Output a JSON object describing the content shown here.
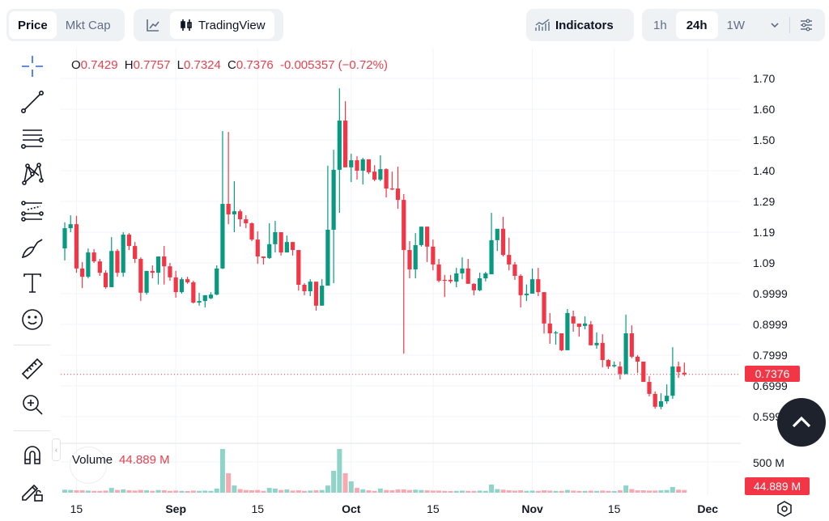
{
  "header": {
    "metric_tabs": [
      {
        "label": "Price",
        "active": true
      },
      {
        "label": "Mkt Cap",
        "active": false
      }
    ],
    "chart_type": {
      "line_icon": "line-chart-icon",
      "tradingview_label": "TradingView",
      "active": "TradingView"
    },
    "indicators_label": "Indicators",
    "timeframes": [
      {
        "label": "1h",
        "active": false
      },
      {
        "label": "24h",
        "active": true
      },
      {
        "label": "1W",
        "active": false
      }
    ],
    "more_icon": "chevron-down-icon",
    "settings_icon": "sliders-icon"
  },
  "legend": {
    "o_label": "O",
    "o": "0.7429",
    "h_label": "H",
    "h": "0.7757",
    "l_label": "L",
    "l": "0.7324",
    "c_label": "C",
    "c": "0.7376",
    "change": "-0.005357 (−0.72%)"
  },
  "volume_legend": {
    "label": "Volume",
    "value": "44.889 M"
  },
  "toolbar": [
    "crosshair-icon",
    "trend-line-icon",
    "fib-retracement-icon",
    "pattern-icon",
    "prediction-icon",
    "brush-icon",
    "text-icon",
    "emoji-icon",
    "ruler-icon",
    "zoom-in-icon",
    "magnet-icon",
    "lock-drawings-icon"
  ],
  "colors": {
    "up": "#089981",
    "down": "#f23645",
    "up_volume": "#8fd4c9",
    "down_volume": "#f7a8b0",
    "accent": "#2962ff"
  },
  "chart_data": {
    "type": "candlestick",
    "price_ticks": [
      "1.70",
      "1.60",
      "1.50",
      "1.40",
      "1.29",
      "1.19",
      "1.09",
      "0.9999",
      "0.8999",
      "0.7999",
      "0.6999",
      "0.5999"
    ],
    "ylim": [
      0.5999,
      1.7
    ],
    "volume_tick": "500 M",
    "volume_unit": "M",
    "x_ticks": [
      {
        "label": "15",
        "date": "08-15"
      },
      {
        "label": "Sep",
        "date": "09-01"
      },
      {
        "label": "15",
        "date": "09-15"
      },
      {
        "label": "Oct",
        "date": "10-01"
      },
      {
        "label": "15",
        "date": "10-15"
      },
      {
        "label": "Nov",
        "date": "11-01"
      },
      {
        "label": "15",
        "date": "11-15"
      },
      {
        "label": "Dec",
        "date": "12-01"
      }
    ],
    "last_price": "0.7376",
    "last_volume": "44.889 M",
    "grid": true,
    "candles_fields": [
      "date",
      "open",
      "high",
      "low",
      "close",
      "volume_M"
    ],
    "candles": [
      [
        "08-13",
        1.147,
        1.232,
        1.108,
        1.213,
        50
      ],
      [
        "08-14",
        1.213,
        1.255,
        1.2,
        1.226,
        45
      ],
      [
        "08-15",
        1.226,
        1.253,
        1.068,
        1.082,
        40
      ],
      [
        "08-16",
        1.082,
        1.103,
        1.018,
        1.055,
        40
      ],
      [
        "08-17",
        1.055,
        1.147,
        1.05,
        1.134,
        35
      ],
      [
        "08-18",
        1.134,
        1.145,
        1.1,
        1.105,
        30
      ],
      [
        "08-19",
        1.105,
        1.113,
        1.058,
        1.068,
        30
      ],
      [
        "08-20",
        1.068,
        1.076,
        1.016,
        1.021,
        35
      ],
      [
        "08-21",
        1.021,
        1.184,
        1.021,
        1.139,
        80
      ],
      [
        "08-22",
        1.139,
        1.145,
        1.055,
        1.068,
        45
      ],
      [
        "08-23",
        1.068,
        1.2,
        1.055,
        1.192,
        55
      ],
      [
        "08-24",
        1.192,
        1.197,
        1.142,
        1.155,
        40
      ],
      [
        "08-25",
        1.155,
        1.168,
        1.1,
        1.113,
        35
      ],
      [
        "08-26",
        1.113,
        1.118,
        0.976,
        1.003,
        45
      ],
      [
        "08-27",
        1.003,
        1.074,
        0.997,
        1.074,
        40
      ],
      [
        "08-28",
        1.074,
        1.092,
        1.05,
        1.068,
        30
      ],
      [
        "08-29",
        1.068,
        1.121,
        1.03,
        1.121,
        45
      ],
      [
        "08-30",
        1.121,
        1.155,
        1.03,
        1.089,
        40
      ],
      [
        "08-31",
        1.089,
        1.1,
        1.042,
        1.053,
        30
      ],
      [
        "09-01",
        1.053,
        1.074,
        0.987,
        1.005,
        35
      ],
      [
        "09-02",
        1.005,
        1.053,
        1.0,
        1.047,
        30
      ],
      [
        "09-03",
        1.047,
        1.055,
        1.032,
        1.037,
        25
      ],
      [
        "09-04",
        1.037,
        1.042,
        0.968,
        0.971,
        35
      ],
      [
        "09-05",
        0.971,
        1.003,
        0.961,
        0.976,
        30
      ],
      [
        "09-06",
        0.976,
        0.995,
        0.955,
        0.995,
        35
      ],
      [
        "09-07",
        0.985,
        1.005,
        0.982,
        0.997,
        30
      ],
      [
        "09-08",
        0.997,
        1.092,
        0.995,
        1.082,
        70
      ],
      [
        "09-09",
        1.082,
        1.529,
        1.08,
        1.292,
        730
      ],
      [
        "09-10",
        1.292,
        1.526,
        1.226,
        1.258,
        325
      ],
      [
        "09-11",
        1.258,
        1.366,
        1.2,
        1.268,
        120
      ],
      [
        "09-12",
        1.268,
        1.274,
        1.218,
        1.242,
        60
      ],
      [
        "09-13",
        1.242,
        1.255,
        1.213,
        1.229,
        45
      ],
      [
        "09-14",
        1.229,
        1.232,
        1.171,
        1.176,
        40
      ],
      [
        "09-15",
        1.176,
        1.203,
        1.097,
        1.121,
        45
      ],
      [
        "09-16",
        1.121,
        1.121,
        1.095,
        1.116,
        30
      ],
      [
        "09-17",
        1.116,
        1.229,
        1.113,
        1.161,
        80
      ],
      [
        "09-18",
        1.161,
        1.237,
        1.134,
        1.2,
        70
      ],
      [
        "09-19",
        1.2,
        1.2,
        1.124,
        1.134,
        45
      ],
      [
        "09-20",
        1.134,
        1.189,
        1.134,
        1.168,
        55
      ],
      [
        "09-21",
        1.168,
        1.168,
        1.124,
        1.142,
        35
      ],
      [
        "09-22",
        1.142,
        1.142,
        1.01,
        1.029,
        40
      ],
      [
        "09-23",
        1.029,
        1.034,
        0.995,
        1.008,
        30
      ],
      [
        "09-24",
        1.008,
        1.047,
        0.992,
        1.039,
        35
      ],
      [
        "09-25",
        1.039,
        1.039,
        0.945,
        0.961,
        40
      ],
      [
        "09-26",
        0.961,
        1.047,
        0.961,
        1.026,
        45
      ],
      [
        "09-27",
        1.026,
        1.416,
        1.026,
        1.208,
        120
      ],
      [
        "09-28",
        1.208,
        1.468,
        1.034,
        1.403,
        365
      ],
      [
        "09-29",
        1.403,
        1.668,
        1.263,
        1.563,
        730
      ],
      [
        "09-30",
        1.563,
        1.626,
        1.411,
        1.411,
        325
      ],
      [
        "10-01",
        1.411,
        1.455,
        1.363,
        1.434,
        190
      ],
      [
        "10-02",
        1.434,
        1.447,
        1.371,
        1.4,
        80
      ],
      [
        "10-03",
        1.4,
        1.442,
        1.355,
        1.437,
        55
      ],
      [
        "10-04",
        1.437,
        1.437,
        1.389,
        1.395,
        40
      ],
      [
        "10-05",
        1.397,
        1.418,
        1.366,
        1.371,
        30
      ],
      [
        "10-06",
        1.371,
        1.45,
        1.366,
        1.405,
        70
      ],
      [
        "10-07",
        1.405,
        1.408,
        1.313,
        1.342,
        45
      ],
      [
        "10-08",
        1.342,
        1.397,
        1.337,
        1.339,
        40
      ],
      [
        "10-09",
        1.342,
        1.413,
        1.276,
        1.305,
        55
      ],
      [
        "10-10",
        1.305,
        1.324,
        0.805,
        1.142,
        55
      ],
      [
        "10-11",
        1.142,
        1.171,
        1.05,
        1.079,
        45
      ],
      [
        "10-12",
        1.079,
        1.197,
        1.05,
        1.158,
        50
      ],
      [
        "10-13",
        1.158,
        1.218,
        1.153,
        1.218,
        45
      ],
      [
        "10-14",
        1.218,
        1.218,
        1.103,
        1.153,
        40
      ],
      [
        "10-15",
        1.153,
        1.176,
        1.076,
        1.095,
        35
      ],
      [
        "10-16",
        1.095,
        1.113,
        1.037,
        1.042,
        35
      ],
      [
        "10-17",
        1.045,
        1.061,
        0.989,
        1.042,
        30
      ],
      [
        "10-18",
        1.045,
        1.061,
        1.034,
        1.04,
        25
      ],
      [
        "10-19",
        1.039,
        1.084,
        1.021,
        1.066,
        30
      ],
      [
        "10-20",
        1.066,
        1.118,
        1.047,
        1.082,
        35
      ],
      [
        "10-21",
        1.082,
        1.113,
        1.032,
        1.032,
        30
      ],
      [
        "10-22",
        1.032,
        1.034,
        0.995,
        1.011,
        30
      ],
      [
        "10-23",
        1.011,
        1.068,
        1.008,
        1.05,
        35
      ],
      [
        "10-24",
        1.05,
        1.071,
        1.04,
        1.066,
        30
      ],
      [
        "10-25",
        1.063,
        1.263,
        1.063,
        1.174,
        135
      ],
      [
        "10-26",
        1.174,
        1.211,
        1.139,
        1.211,
        60
      ],
      [
        "10-27",
        1.211,
        1.25,
        1.121,
        1.126,
        50
      ],
      [
        "10-28",
        1.126,
        1.182,
        1.076,
        1.095,
        40
      ],
      [
        "10-29",
        1.095,
        1.103,
        1.045,
        1.058,
        35
      ],
      [
        "10-30",
        1.058,
        1.063,
        0.955,
        0.995,
        40
      ],
      [
        "10-31",
        0.995,
        1.03,
        0.976,
        1.0,
        30
      ],
      [
        "11-01",
        1.0,
        1.082,
        1.0,
        1.047,
        35
      ],
      [
        "11-02",
        1.047,
        1.084,
        0.992,
        1.005,
        30
      ],
      [
        "11-03",
        1.005,
        1.005,
        0.87,
        0.903,
        40
      ],
      [
        "11-04",
        0.903,
        0.937,
        0.837,
        0.871,
        35
      ],
      [
        "11-05",
        0.871,
        0.879,
        0.834,
        0.874,
        30
      ],
      [
        "11-06",
        0.871,
        0.871,
        0.813,
        0.816,
        30
      ],
      [
        "11-07",
        0.816,
        0.95,
        0.816,
        0.937,
        45
      ],
      [
        "11-08",
        0.926,
        0.945,
        0.876,
        0.903,
        35
      ],
      [
        "11-09",
        0.903,
        0.903,
        0.86,
        0.892,
        30
      ],
      [
        "11-10",
        0.895,
        0.926,
        0.884,
        0.903,
        30
      ],
      [
        "11-11",
        0.9,
        0.911,
        0.832,
        0.832,
        35
      ],
      [
        "11-12",
        0.832,
        0.874,
        0.821,
        0.84,
        30
      ],
      [
        "11-13",
        0.84,
        0.868,
        0.76,
        0.784,
        35
      ],
      [
        "11-14",
        0.784,
        0.787,
        0.755,
        0.763,
        30
      ],
      [
        "11-15",
        0.764,
        0.779,
        0.76,
        0.768,
        25
      ],
      [
        "11-16",
        0.763,
        0.779,
        0.721,
        0.739,
        40
      ],
      [
        "11-17",
        0.739,
        0.932,
        0.737,
        0.871,
        120
      ],
      [
        "11-18",
        0.871,
        0.897,
        0.79,
        0.795,
        60
      ],
      [
        "11-19",
        0.795,
        0.8,
        0.742,
        0.779,
        40
      ],
      [
        "11-20",
        0.779,
        0.779,
        0.713,
        0.713,
        40
      ],
      [
        "11-21",
        0.713,
        0.732,
        0.666,
        0.674,
        35
      ],
      [
        "11-22",
        0.674,
        0.682,
        0.626,
        0.632,
        35
      ],
      [
        "11-23",
        0.632,
        0.676,
        0.624,
        0.65,
        40
      ],
      [
        "11-24",
        0.65,
        0.705,
        0.642,
        0.668,
        45
      ],
      [
        "11-25",
        0.668,
        0.826,
        0.658,
        0.763,
        95
      ],
      [
        "11-26",
        0.763,
        0.779,
        0.726,
        0.745,
        50
      ],
      [
        "11-27",
        0.7429,
        0.7757,
        0.7324,
        0.7376,
        44.889
      ]
    ]
  }
}
